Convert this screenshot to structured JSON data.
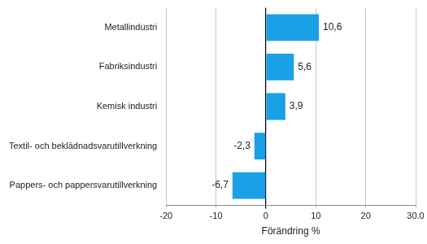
{
  "chart_data": {
    "type": "bar",
    "orientation": "horizontal",
    "categories": [
      "Metallindustri",
      "Fabriksindustri",
      "Kemisk industri",
      "Textil- och beklädnadsvarutillverkning",
      "Pappers- och pappersvarutillverkning"
    ],
    "values": [
      10.6,
      5.6,
      3.9,
      -2.3,
      -6.7
    ],
    "value_labels": [
      "10,6",
      "5,6",
      "3,9",
      "-2,3",
      "-6,7"
    ],
    "data_labels": true,
    "color": "#1aa0e6",
    "x_label": "Förändring %",
    "xlim": [
      -20,
      30
    ],
    "xticks": [
      -20,
      -10,
      0,
      10,
      20,
      {
        "value": 30,
        "label": "30.0"
      }
    ],
    "grid": true
  }
}
